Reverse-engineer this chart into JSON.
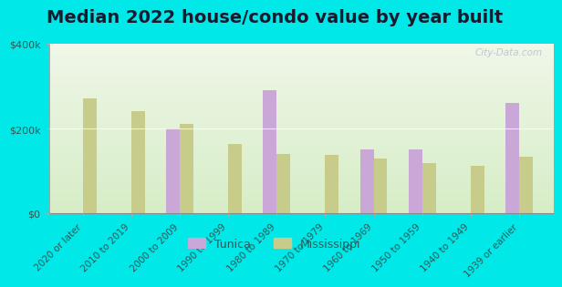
{
  "title": "Median 2022 house/condo value by year built",
  "categories": [
    "2020 or later",
    "2010 to 2019",
    "2000 to 2009",
    "1990 to 1999",
    "1980 to 1989",
    "1970 to 1979",
    "1960 to 1969",
    "1950 to 1959",
    "1940 to 1949",
    "1939 or earlier"
  ],
  "tunica": [
    null,
    null,
    200000,
    null,
    290000,
    null,
    150000,
    150000,
    null,
    260000
  ],
  "mississippi": [
    270000,
    240000,
    210000,
    163000,
    140000,
    138000,
    128000,
    118000,
    112000,
    133000
  ],
  "tunica_color": "#c9a8d8",
  "mississippi_color": "#c8cc8a",
  "background_outer": "#00e8e8",
  "background_plot_bottom": "#d8eecc",
  "background_plot_top": "#f0f8e8",
  "ylim": [
    0,
    400000
  ],
  "yticks": [
    0,
    200000,
    400000
  ],
  "ytick_labels": [
    "$0",
    "$200k",
    "$400k"
  ],
  "bar_width": 0.28,
  "legend_tunica": "Tunica",
  "legend_mississippi": "Mississippi",
  "title_fontsize": 14,
  "tick_label_fontsize": 7.5,
  "watermark": "City-Data.com",
  "text_color": "#2a5a5a",
  "title_color": "#1a1a2e"
}
